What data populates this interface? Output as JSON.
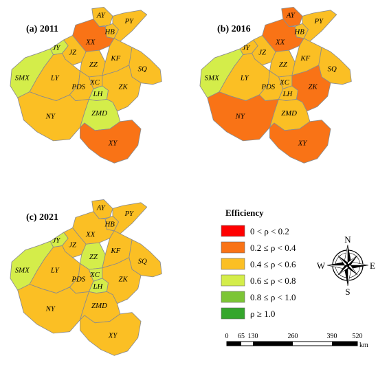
{
  "colors": {
    "c1": "#ff0000",
    "c2": "#f97316",
    "c3": "#fbbf24",
    "c4": "#d4ed4a",
    "c5": "#7cc536",
    "c6": "#35a62c"
  },
  "maps": [
    {
      "title": "(a) 2011",
      "regions": {
        "AY": {
          "label": "AY",
          "cls": "c3"
        },
        "HB": {
          "label": "HB",
          "cls": "c3"
        },
        "PY": {
          "label": "PY",
          "cls": "c3"
        },
        "XX": {
          "label": "XX",
          "cls": "c2"
        },
        "JY": {
          "label": "JY",
          "cls": "c4"
        },
        "JZ": {
          "label": "JZ",
          "cls": "c3"
        },
        "ZZ": {
          "label": "ZZ",
          "cls": "c3"
        },
        "KF": {
          "label": "KF",
          "cls": "c3"
        },
        "SQ": {
          "label": "SQ",
          "cls": "c3"
        },
        "SMX": {
          "label": "SMX",
          "cls": "c4"
        },
        "LY": {
          "label": "LY",
          "cls": "c3"
        },
        "PDS": {
          "label": "PDS",
          "cls": "c3"
        },
        "XC": {
          "label": "XC",
          "cls": "c3"
        },
        "LH": {
          "label": "LH",
          "cls": "c4"
        },
        "ZK": {
          "label": "ZK",
          "cls": "c3"
        },
        "NY": {
          "label": "NY",
          "cls": "c3"
        },
        "ZMD": {
          "label": "ZMD",
          "cls": "c4"
        },
        "XY": {
          "label": "XY",
          "cls": "c2"
        }
      }
    },
    {
      "title": "(b) 2016",
      "regions": {
        "AY": {
          "label": "AY",
          "cls": "c2"
        },
        "HB": {
          "label": "HB",
          "cls": "c3"
        },
        "PY": {
          "label": "PY",
          "cls": "c3"
        },
        "XX": {
          "label": "XX",
          "cls": "c2"
        },
        "JY": {
          "label": "JY",
          "cls": "c3"
        },
        "JZ": {
          "label": "JZ",
          "cls": "c3"
        },
        "ZZ": {
          "label": "ZZ",
          "cls": "c3"
        },
        "KF": {
          "label": "KF",
          "cls": "c3"
        },
        "SQ": {
          "label": "SQ",
          "cls": "c3"
        },
        "SMX": {
          "label": "SMX",
          "cls": "c4"
        },
        "LY": {
          "label": "LY",
          "cls": "c3"
        },
        "PDS": {
          "label": "PDS",
          "cls": "c3"
        },
        "XC": {
          "label": "XC",
          "cls": "c3"
        },
        "LH": {
          "label": "LH",
          "cls": "c3"
        },
        "ZK": {
          "label": "ZK",
          "cls": "c2"
        },
        "NY": {
          "label": "NY",
          "cls": "c2"
        },
        "ZMD": {
          "label": "ZMD",
          "cls": "c3"
        },
        "XY": {
          "label": "XY",
          "cls": "c2"
        }
      }
    },
    {
      "title": "(c) 2021",
      "regions": {
        "AY": {
          "label": "AY",
          "cls": "c3"
        },
        "HB": {
          "label": "HB",
          "cls": "c3"
        },
        "PY": {
          "label": "PY",
          "cls": "c3"
        },
        "XX": {
          "label": "XX",
          "cls": "c3"
        },
        "JY": {
          "label": "JY",
          "cls": "c4"
        },
        "JZ": {
          "label": "JZ",
          "cls": "c3"
        },
        "ZZ": {
          "label": "ZZ",
          "cls": "c4"
        },
        "KF": {
          "label": "KF",
          "cls": "c3"
        },
        "SQ": {
          "label": "SQ",
          "cls": "c3"
        },
        "SMX": {
          "label": "SMX",
          "cls": "c4"
        },
        "LY": {
          "label": "LY",
          "cls": "c3"
        },
        "PDS": {
          "label": "PDS",
          "cls": "c3"
        },
        "XC": {
          "label": "XC",
          "cls": "c4"
        },
        "LH": {
          "label": "LH",
          "cls": "c4"
        },
        "ZK": {
          "label": "ZK",
          "cls": "c3"
        },
        "NY": {
          "label": "NY",
          "cls": "c3"
        },
        "ZMD": {
          "label": "ZMD",
          "cls": "c3"
        },
        "XY": {
          "label": "XY",
          "cls": "c3"
        }
      }
    }
  ],
  "legend": {
    "title": "Efficiency",
    "items": [
      {
        "cls": "c1",
        "label": "0 < ρ < 0.2"
      },
      {
        "cls": "c2",
        "label": "0.2 ≤ ρ < 0.4"
      },
      {
        "cls": "c3",
        "label": "0.4 ≤ ρ < 0.6"
      },
      {
        "cls": "c4",
        "label": "0.6 ≤ ρ < 0.8"
      },
      {
        "cls": "c5",
        "label": "0.8 ≤ ρ < 1.0"
      },
      {
        "cls": "c6",
        "label": "ρ ≥ 1.0"
      }
    ]
  },
  "compass": {
    "n": "N",
    "s": "S",
    "e": "E",
    "w": "W"
  },
  "scale_bar": {
    "ticks": [
      "0",
      "65",
      "130",
      "260",
      "390",
      "520"
    ],
    "unit": "km"
  }
}
